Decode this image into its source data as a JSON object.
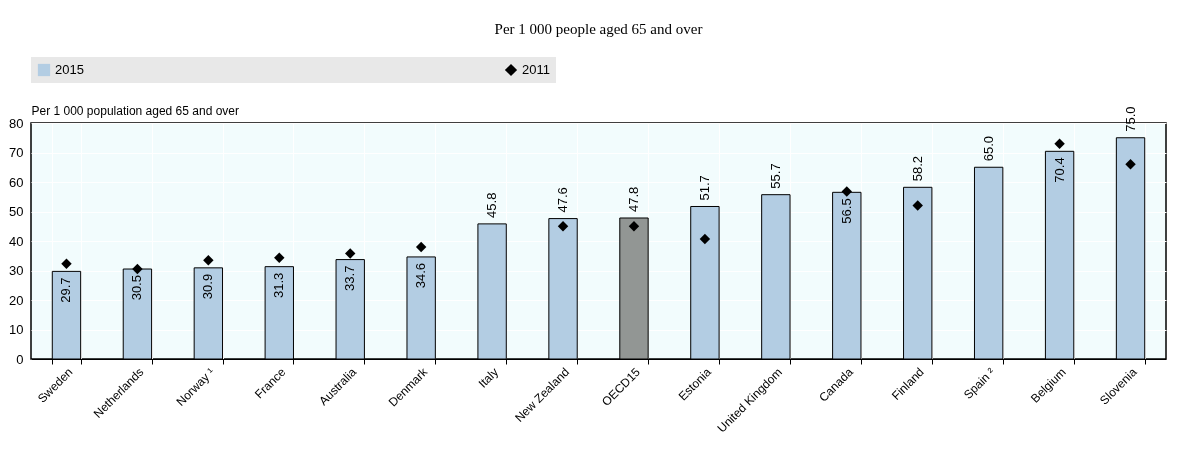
{
  "chart_data": {
    "type": "bar",
    "title": "Per 1 000 people aged 65 and over",
    "ylabel": "Per 1 000 population aged 65 and over",
    "categories": [
      "Sweden",
      "Netherlands",
      "Norway ¹",
      "France",
      "Australia",
      "Denmark",
      "Italy",
      "New Zealand",
      "OECD15",
      "Estonia",
      "United Kingdom",
      "Canada",
      "Finland",
      "Spain ²",
      "Belgium",
      "Slovenia"
    ],
    "series": [
      {
        "name": "2015",
        "color": "#b3cde3",
        "colors": [
          "#b3cde3",
          "#b3cde3",
          "#b3cde3",
          "#b3cde3",
          "#b3cde3",
          "#b3cde3",
          "#b3cde3",
          "#b3cde3",
          "#929694",
          "#b3cde3",
          "#b3cde3",
          "#b3cde3",
          "#b3cde3",
          "#b3cde3",
          "#b3cde3",
          "#b3cde3"
        ],
        "values": [
          29.7,
          30.5,
          30.9,
          31.3,
          33.7,
          34.6,
          45.8,
          47.6,
          47.8,
          51.7,
          55.7,
          56.5,
          58.2,
          65.0,
          70.4,
          75.0
        ],
        "value_labels": [
          "29.7",
          "30.5",
          "30.9",
          "31.3",
          "33.7",
          "34.6",
          "45.8",
          "47.6",
          "47.8",
          "51.7",
          "55.7",
          "56.5",
          "58.2",
          "65.0",
          "70.4",
          "75.0"
        ]
      },
      {
        "name": "2011",
        "type": "scatter",
        "color": "#000000",
        "marker": "diamond",
        "values": [
          32.3,
          30.5,
          33.5,
          34.3,
          35.8,
          38.0,
          null,
          45.0,
          45.0,
          40.7,
          null,
          56.8,
          52.0,
          null,
          73.0,
          66.0
        ]
      }
    ],
    "ylim": [
      0,
      80
    ],
    "yticks": [
      0,
      10,
      20,
      30,
      40,
      50,
      60,
      70,
      80
    ],
    "grid": true,
    "legend": "top"
  }
}
